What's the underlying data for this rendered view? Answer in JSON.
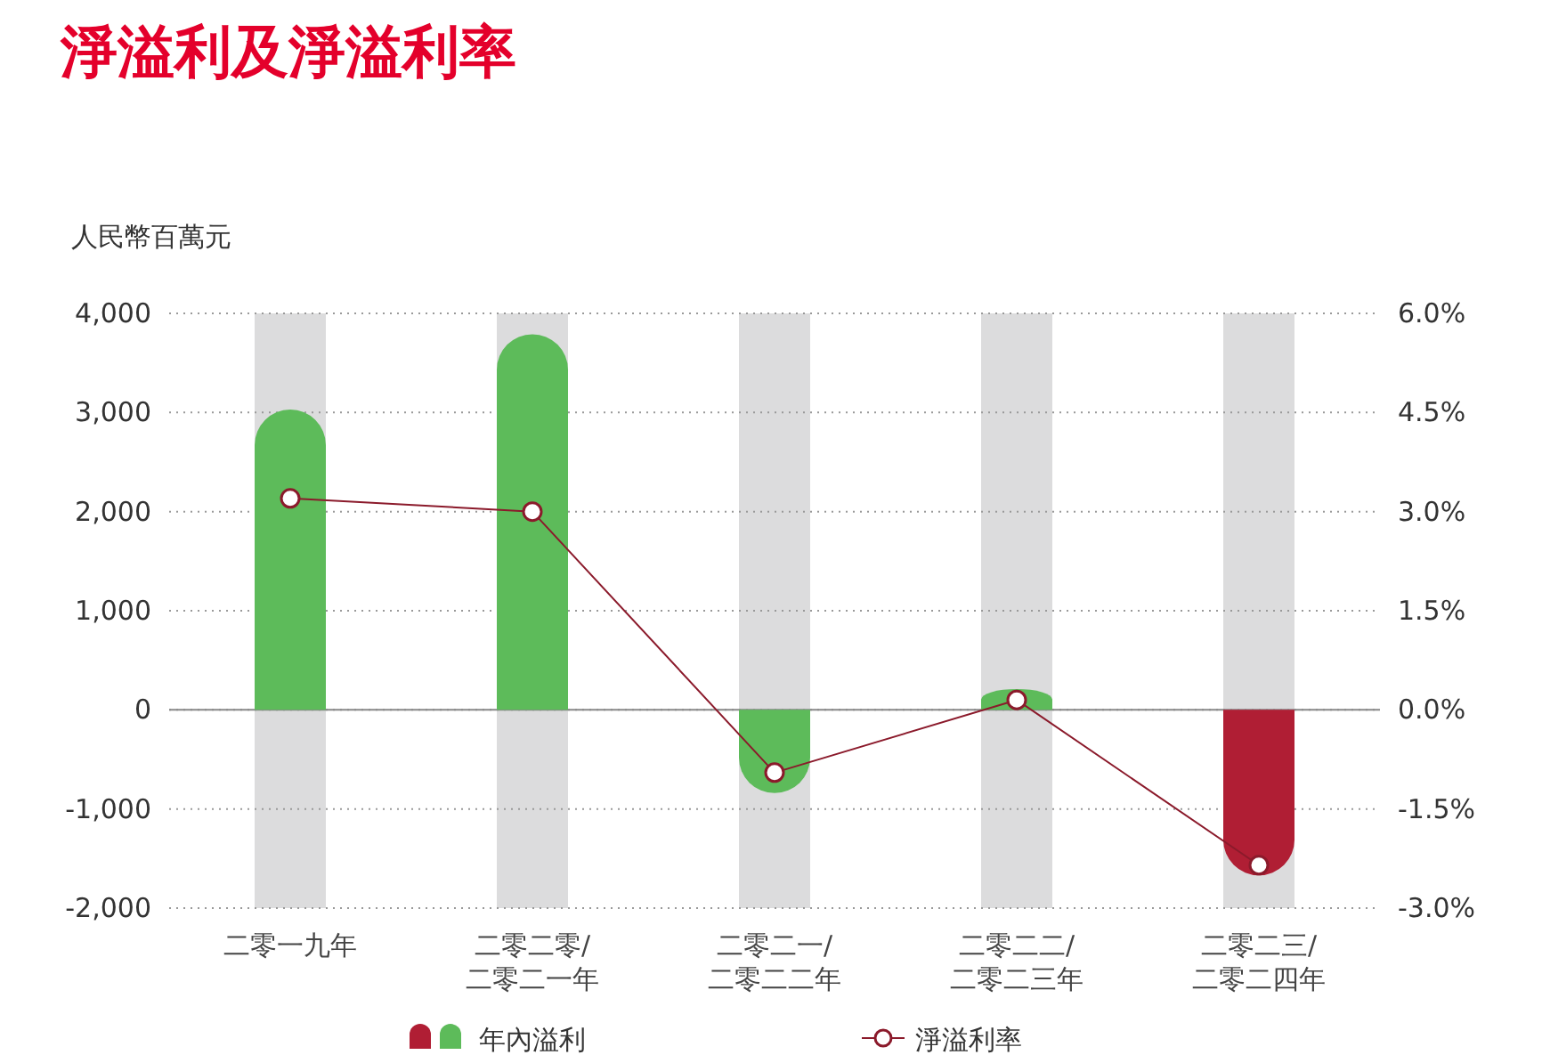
{
  "chart_data": {
    "type": "bar",
    "title": "淨溢利及淨溢利率",
    "ylabel": "人民幣百萬元",
    "categories": [
      "二零一九年",
      "二零二零/\n二零二一年",
      "二零二一/\n二零二二年",
      "二零二二/\n二零二三年",
      "二零二三/\n二零二四年"
    ],
    "series": [
      {
        "name": "年內溢利",
        "colors": [
          "#5dbb5a",
          "#5dbb5a",
          "#5dbb5a",
          "#5dbb5a",
          "#b01e34"
        ],
        "values": [
          3030,
          3790,
          -840,
          210,
          -1670
        ]
      },
      {
        "name": "淨溢利率",
        "type": "line",
        "axis": "y2",
        "color": "#8b1a2b",
        "marker": "circle",
        "values": [
          3.2,
          3.0,
          -0.95,
          0.15,
          -2.35
        ]
      }
    ],
    "ylim": [
      -2000,
      4000
    ],
    "yticks": [
      {
        "value": -2000,
        "label": "-2,000"
      },
      {
        "value": -1000,
        "label": "-1,000"
      },
      0,
      {
        "value": 1000,
        "label": "1,000"
      },
      {
        "value": 2000,
        "label": "2,000"
      },
      {
        "value": 3000,
        "label": "3,000"
      },
      {
        "value": 4000,
        "label": "4,000"
      }
    ],
    "y2lim": [
      -3,
      6
    ],
    "y2ticks": [
      {
        "value": -3,
        "label": "-3.0%"
      },
      {
        "value": -1.5,
        "label": "-1.5%"
      },
      {
        "value": 0,
        "label": "0.0%"
      },
      {
        "value": 1.5,
        "label": "1.5%"
      },
      {
        "value": 3,
        "label": "3.0%"
      },
      {
        "value": 4.5,
        "label": "4.5%"
      },
      {
        "value": 6,
        "label": "6.0%"
      }
    ],
    "grid": "y",
    "legend": "bottom"
  }
}
